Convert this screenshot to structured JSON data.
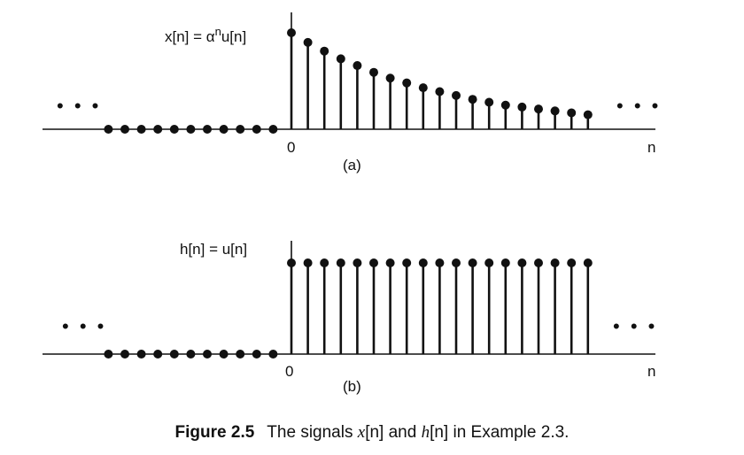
{
  "chart_data": [
    {
      "type": "stem",
      "panel": "(a)",
      "signal_label_prefix": "x[n] = ",
      "signal_label_base": "α",
      "signal_label_exp": "n",
      "signal_label_suffix": "u[n]",
      "origin_label": "0",
      "axis_label": "n",
      "continuation": "• • •",
      "neg_n": [
        -11,
        -10,
        -9,
        -8,
        -7,
        -6,
        -5,
        -4,
        -3,
        -2,
        -1
      ],
      "n": [
        0,
        1,
        2,
        3,
        4,
        5,
        6,
        7,
        8,
        9,
        10,
        11,
        12,
        13,
        14,
        15,
        16,
        17,
        18
      ],
      "values": [
        1.0,
        0.9,
        0.81,
        0.73,
        0.66,
        0.59,
        0.53,
        0.48,
        0.43,
        0.39,
        0.35,
        0.31,
        0.28,
        0.25,
        0.23,
        0.21,
        0.19,
        0.17,
        0.15
      ]
    },
    {
      "type": "stem",
      "panel": "(b)",
      "signal_label": "h[n] = u[n]",
      "origin_label": "0",
      "axis_label": "n",
      "continuation": "• • •",
      "neg_n": [
        -11,
        -10,
        -9,
        -8,
        -7,
        -6,
        -5,
        -4,
        -3,
        -2,
        -1
      ],
      "n": [
        0,
        1,
        2,
        3,
        4,
        5,
        6,
        7,
        8,
        9,
        10,
        11,
        12,
        13,
        14,
        15,
        16,
        17,
        18
      ],
      "values": [
        1,
        1,
        1,
        1,
        1,
        1,
        1,
        1,
        1,
        1,
        1,
        1,
        1,
        1,
        1,
        1,
        1,
        1,
        1
      ]
    }
  ],
  "caption": {
    "figure": "Figure 2.5",
    "text_1": "The signals ",
    "x_sym": "x",
    "x_idx": "[n]",
    "text_2": " and ",
    "h_sym": "h",
    "h_idx": "[n]",
    "text_3": " in Example 2.3."
  }
}
